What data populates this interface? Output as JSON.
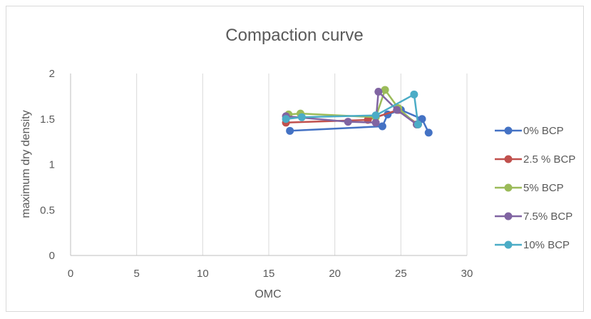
{
  "chart_data": {
    "type": "scatter",
    "title": "Compaction curve",
    "xlabel": "OMC",
    "ylabel": "maximum dry density",
    "xlim": [
      0,
      30
    ],
    "ylim": [
      0,
      2
    ],
    "x_ticks": [
      "0",
      "5",
      "10",
      "15",
      "20",
      "25",
      "30"
    ],
    "y_ticks": [
      "0",
      "0.5",
      "1",
      "1.5",
      "2"
    ],
    "grid": "vertical",
    "legend_position": "right",
    "series": [
      {
        "name": "0% BCP",
        "color": "#4472C4",
        "points": [
          [
            16.6,
            1.37
          ],
          [
            23.6,
            1.42
          ],
          [
            24.0,
            1.55
          ],
          [
            25.0,
            1.6
          ],
          [
            26.6,
            1.5
          ],
          [
            27.1,
            1.35
          ]
        ]
      },
      {
        "name": "2.5 % BCP",
        "color": "#C0504D",
        "points": [
          [
            16.3,
            1.46
          ],
          [
            22.5,
            1.49
          ],
          [
            24.8,
            1.6
          ],
          [
            26.3,
            1.44
          ]
        ]
      },
      {
        "name": "5% BCP",
        "color": "#9BBB59",
        "points": [
          [
            16.5,
            1.55
          ],
          [
            17.4,
            1.56
          ],
          [
            23.1,
            1.52
          ],
          [
            23.8,
            1.82
          ],
          [
            24.8,
            1.62
          ],
          [
            26.2,
            1.44
          ]
        ]
      },
      {
        "name": "7.5% BCP",
        "color": "#8064A2",
        "points": [
          [
            16.3,
            1.53
          ],
          [
            21.0,
            1.47
          ],
          [
            23.1,
            1.46
          ],
          [
            23.3,
            1.8
          ],
          [
            24.7,
            1.6
          ],
          [
            26.2,
            1.44
          ]
        ]
      },
      {
        "name": "10% BCP",
        "color": "#4BACC6",
        "points": [
          [
            16.3,
            1.5
          ],
          [
            17.5,
            1.52
          ],
          [
            23.1,
            1.54
          ],
          [
            26.0,
            1.77
          ],
          [
            26.3,
            1.44
          ]
        ]
      }
    ]
  }
}
